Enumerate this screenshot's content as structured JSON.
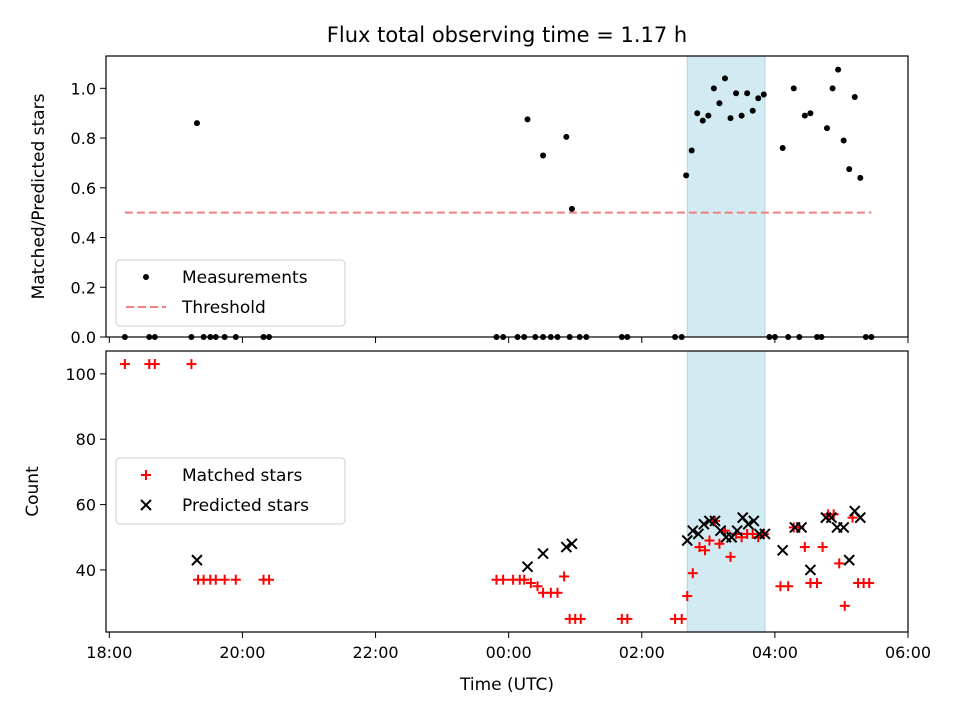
{
  "figure": {
    "title": "Flux total observing time = 1.17 h",
    "xlabel": "Time (UTC)"
  },
  "colors": {
    "measurement": "#000000",
    "threshold": "#f08080",
    "matched": "#ff0000",
    "predicted": "#000000",
    "highlight": "#add8e6"
  },
  "chart_data": [
    {
      "type": "scatter",
      "ylabel": "Matched/Predicted stars",
      "xlim": [
        "17:57",
        "06:00"
      ],
      "ylim": [
        0,
        1.13
      ],
      "xticks": [
        "18:00",
        "20:00",
        "22:00",
        "00:00",
        "02:00",
        "04:00",
        "06:00"
      ],
      "yticks": [
        "0.0",
        "0.2",
        "0.4",
        "0.6",
        "0.8",
        "1.0"
      ],
      "highlight_span": [
        "02:41",
        "03:51"
      ],
      "legend": {
        "placement": "lower-left",
        "entries": [
          {
            "label": "Measurements",
            "marker": "dot"
          },
          {
            "label": "Threshold",
            "marker": "dashed-line"
          }
        ]
      },
      "threshold": {
        "value": 0.5,
        "x_from": "18:14",
        "x_to": "05:27"
      },
      "series": [
        {
          "name": "Measurements",
          "points": [
            [
              "18:14",
              0
            ],
            [
              "18:36",
              0
            ],
            [
              "18:41",
              0
            ],
            [
              "19:14",
              0
            ],
            [
              "19:19",
              0.86
            ],
            [
              "19:25",
              0
            ],
            [
              "19:31",
              0
            ],
            [
              "19:36",
              0
            ],
            [
              "19:44",
              0
            ],
            [
              "19:54",
              0
            ],
            [
              "20:19",
              0
            ],
            [
              "20:24",
              0
            ],
            [
              "23:49",
              0
            ],
            [
              "23:55",
              0
            ],
            [
              "00:08",
              0
            ],
            [
              "00:14",
              0
            ],
            [
              "00:17",
              0.875
            ],
            [
              "00:24",
              0
            ],
            [
              "00:31",
              0
            ],
            [
              "00:31",
              0.73
            ],
            [
              "00:38",
              0
            ],
            [
              "00:44",
              0
            ],
            [
              "00:52",
              0.805
            ],
            [
              "00:55",
              0
            ],
            [
              "00:57",
              0.515
            ],
            [
              "01:04",
              0
            ],
            [
              "01:10",
              0
            ],
            [
              "01:42",
              0
            ],
            [
              "01:47",
              0
            ],
            [
              "02:30",
              0
            ],
            [
              "02:36",
              0
            ],
            [
              "02:40",
              0.65
            ],
            [
              "02:45",
              0.75
            ],
            [
              "02:50",
              0.9
            ],
            [
              "02:55",
              0.87
            ],
            [
              "03:00",
              0.89
            ],
            [
              "03:05",
              1.0
            ],
            [
              "03:10",
              0.94
            ],
            [
              "03:15",
              1.04
            ],
            [
              "03:20",
              0.88
            ],
            [
              "03:25",
              0.98
            ],
            [
              "03:30",
              0.89
            ],
            [
              "03:35",
              0.98
            ],
            [
              "03:40",
              0.91
            ],
            [
              "03:45",
              0.96
            ],
            [
              "03:50",
              0.975
            ],
            [
              "03:55",
              0
            ],
            [
              "04:00",
              0
            ],
            [
              "04:07",
              0.76
            ],
            [
              "04:12",
              0
            ],
            [
              "04:17",
              1.0
            ],
            [
              "04:22",
              0
            ],
            [
              "04:27",
              0.89
            ],
            [
              "04:32",
              0.9
            ],
            [
              "04:38",
              0
            ],
            [
              "04:42",
              0
            ],
            [
              "04:47",
              0.84
            ],
            [
              "04:52",
              1.0
            ],
            [
              "04:57",
              1.075
            ],
            [
              "05:02",
              0.79
            ],
            [
              "05:07",
              0.675
            ],
            [
              "05:12",
              0.965
            ],
            [
              "05:17",
              0.64
            ],
            [
              "05:22",
              0
            ],
            [
              "05:27",
              0
            ]
          ]
        }
      ]
    },
    {
      "type": "scatter",
      "ylabel": "Count",
      "xlim": [
        "17:57",
        "06:00"
      ],
      "ylim": [
        21,
        107
      ],
      "xticks": [
        "18:00",
        "20:00",
        "22:00",
        "00:00",
        "02:00",
        "04:00",
        "06:00"
      ],
      "yticks": [
        "40",
        "60",
        "80",
        "100"
      ],
      "highlight_span": [
        "02:41",
        "03:51"
      ],
      "legend": {
        "placement": "center-left",
        "entries": [
          {
            "label": "Matched stars",
            "marker": "plus"
          },
          {
            "label": "Predicted stars",
            "marker": "x"
          }
        ]
      },
      "series": [
        {
          "name": "Matched stars",
          "points": [
            [
              "18:14",
              103
            ],
            [
              "18:36",
              103
            ],
            [
              "18:41",
              103
            ],
            [
              "19:14",
              103
            ],
            [
              "19:20",
              37
            ],
            [
              "19:25",
              37
            ],
            [
              "19:31",
              37
            ],
            [
              "19:36",
              37
            ],
            [
              "19:44",
              37
            ],
            [
              "19:54",
              37
            ],
            [
              "20:19",
              37
            ],
            [
              "20:24",
              37
            ],
            [
              "23:49",
              37
            ],
            [
              "23:55",
              37
            ],
            [
              "00:04",
              37
            ],
            [
              "00:10",
              37
            ],
            [
              "00:14",
              37
            ],
            [
              "00:20",
              36
            ],
            [
              "00:26",
              35
            ],
            [
              "00:31",
              33
            ],
            [
              "00:38",
              33
            ],
            [
              "00:44",
              33
            ],
            [
              "00:50",
              38
            ],
            [
              "00:55",
              25
            ],
            [
              "01:00",
              25
            ],
            [
              "01:05",
              25
            ],
            [
              "01:42",
              25
            ],
            [
              "01:47",
              25
            ],
            [
              "02:30",
              25
            ],
            [
              "02:36",
              25
            ],
            [
              "02:41",
              32
            ],
            [
              "02:46",
              39
            ],
            [
              "02:52",
              47
            ],
            [
              "02:57",
              46
            ],
            [
              "03:01",
              49
            ],
            [
              "03:06",
              55
            ],
            [
              "03:10",
              48
            ],
            [
              "03:15",
              52
            ],
            [
              "03:20",
              44
            ],
            [
              "03:25",
              51
            ],
            [
              "03:30",
              50
            ],
            [
              "03:35",
              51
            ],
            [
              "03:40",
              51
            ],
            [
              "03:45",
              50
            ],
            [
              "03:50",
              51
            ],
            [
              "04:05",
              35
            ],
            [
              "04:12",
              35
            ],
            [
              "04:17",
              53
            ],
            [
              "04:22",
              53
            ],
            [
              "04:27",
              47
            ],
            [
              "04:32",
              36
            ],
            [
              "04:38",
              36
            ],
            [
              "04:43",
              47
            ],
            [
              "04:48",
              57
            ],
            [
              "04:53",
              57
            ],
            [
              "04:58",
              42
            ],
            [
              "05:03",
              29
            ],
            [
              "05:10",
              56
            ],
            [
              "05:15",
              36
            ],
            [
              "05:20",
              36
            ],
            [
              "05:25",
              36
            ]
          ]
        },
        {
          "name": "Predicted stars",
          "points": [
            [
              "19:19",
              43
            ],
            [
              "00:17",
              41
            ],
            [
              "00:31",
              45
            ],
            [
              "00:52",
              47
            ],
            [
              "00:57",
              48
            ],
            [
              "02:41",
              49
            ],
            [
              "02:46",
              52
            ],
            [
              "02:51",
              51
            ],
            [
              "02:56",
              54
            ],
            [
              "03:01",
              55
            ],
            [
              "03:06",
              55
            ],
            [
              "03:11",
              52
            ],
            [
              "03:16",
              50
            ],
            [
              "03:21",
              50
            ],
            [
              "03:26",
              52
            ],
            [
              "03:31",
              56
            ],
            [
              "03:36",
              54
            ],
            [
              "03:41",
              55
            ],
            [
              "03:46",
              51
            ],
            [
              "03:51",
              51
            ],
            [
              "04:07",
              46
            ],
            [
              "04:18",
              53
            ],
            [
              "04:24",
              53
            ],
            [
              "04:32",
              40
            ],
            [
              "04:46",
              56
            ],
            [
              "04:51",
              56
            ],
            [
              "04:56",
              53
            ],
            [
              "05:02",
              53
            ],
            [
              "05:07",
              43
            ],
            [
              "05:12",
              58
            ],
            [
              "05:17",
              56
            ]
          ]
        }
      ]
    }
  ]
}
